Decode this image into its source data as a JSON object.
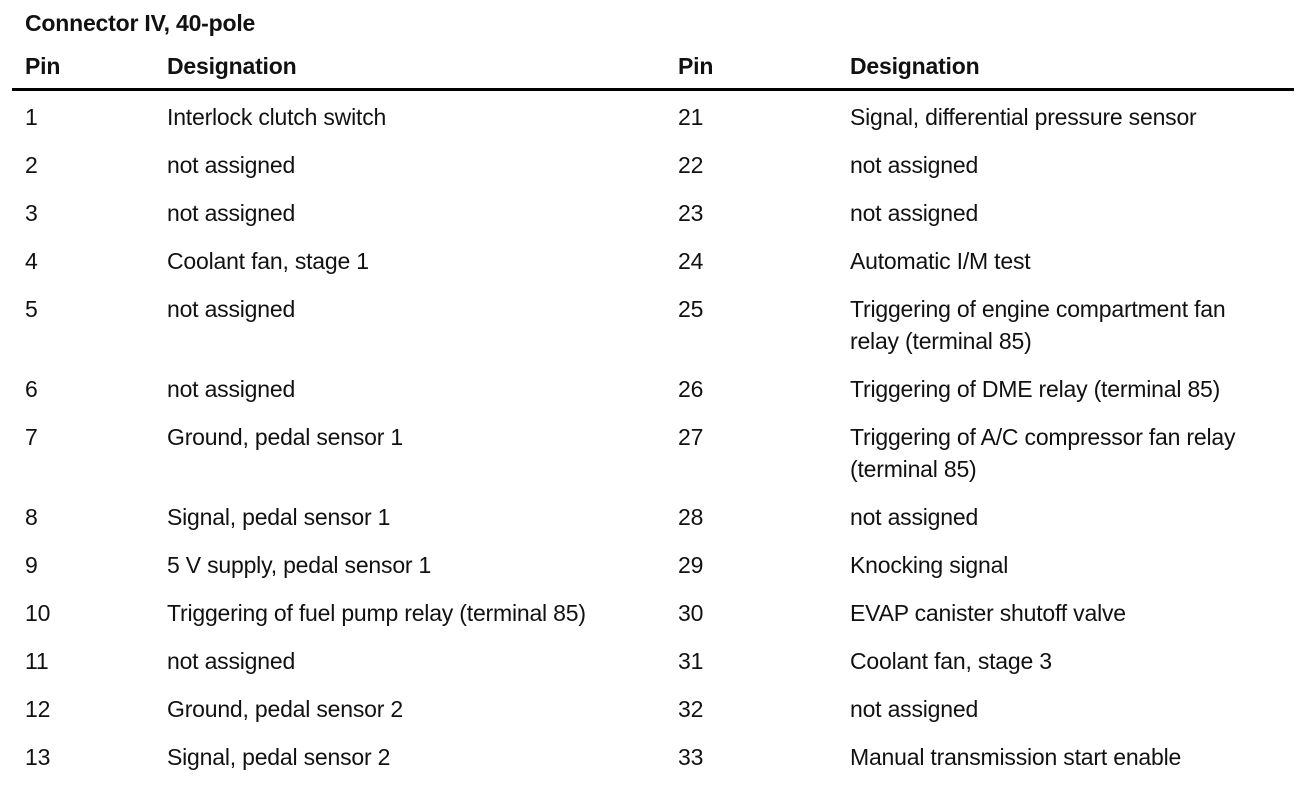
{
  "page": {
    "title": "Connector IV, 40-pole",
    "columns": {
      "pin_header": "Pin",
      "designation_header": "Designation"
    },
    "text_color": "#111111",
    "background_color": "#ffffff",
    "rows": [
      {
        "left": {
          "pin": "1",
          "designation": "Interlock clutch switch"
        },
        "right": {
          "pin": "21",
          "designation": "Signal, differential pressure sensor"
        }
      },
      {
        "left": {
          "pin": "2",
          "designation": "not assigned"
        },
        "right": {
          "pin": "22",
          "designation": "not assigned"
        }
      },
      {
        "left": {
          "pin": "3",
          "designation": "not assigned"
        },
        "right": {
          "pin": "23",
          "designation": "not assigned"
        }
      },
      {
        "left": {
          "pin": "4",
          "designation": "Coolant fan, stage 1"
        },
        "right": {
          "pin": "24",
          "designation": "Automatic I/M test"
        }
      },
      {
        "left": {
          "pin": "5",
          "designation": "not assigned"
        },
        "right": {
          "pin": "25",
          "designation": "Triggering of engine compartment fan\nrelay (terminal 85)"
        }
      },
      {
        "left": {
          "pin": "6",
          "designation": "not assigned"
        },
        "right": {
          "pin": "26",
          "designation": "Triggering of DME relay (terminal 85)"
        }
      },
      {
        "left": {
          "pin": "7",
          "designation": "Ground, pedal sensor 1"
        },
        "right": {
          "pin": "27",
          "designation": "Triggering of A/C compressor fan relay\n(terminal 85)"
        }
      },
      {
        "left": {
          "pin": "8",
          "designation": "Signal, pedal sensor 1"
        },
        "right": {
          "pin": "28",
          "designation": "not assigned"
        }
      },
      {
        "left": {
          "pin": "9",
          "designation": "5 V supply, pedal sensor 1"
        },
        "right": {
          "pin": "29",
          "designation": "Knocking signal"
        }
      },
      {
        "left": {
          "pin": "10",
          "designation": "Triggering of fuel pump relay (terminal 85)"
        },
        "right": {
          "pin": "30",
          "designation": "EVAP canister shutoff valve"
        }
      },
      {
        "left": {
          "pin": "11",
          "designation": "not assigned"
        },
        "right": {
          "pin": "31",
          "designation": "Coolant fan, stage 3"
        }
      },
      {
        "left": {
          "pin": "12",
          "designation": "Ground, pedal sensor 2"
        },
        "right": {
          "pin": "32",
          "designation": "not assigned"
        }
      },
      {
        "left": {
          "pin": "13",
          "designation": "Signal, pedal sensor 2"
        },
        "right": {
          "pin": "33",
          "designation": "Manual transmission start enable"
        }
      }
    ]
  }
}
